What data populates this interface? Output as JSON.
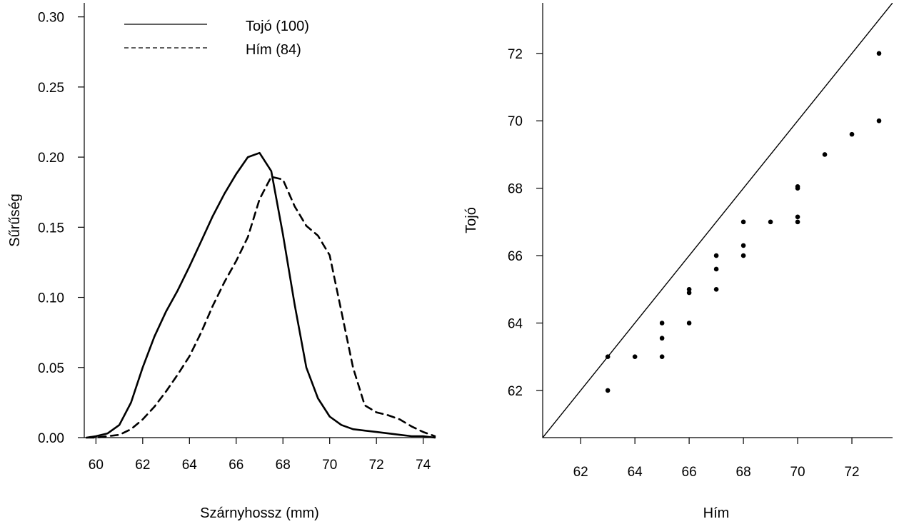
{
  "chart_data": [
    {
      "type": "line",
      "title": "",
      "xlabel": "Szárnyhossz (mm)",
      "ylabel": "Sűrűség",
      "xlim": [
        59.5,
        74.5
      ],
      "ylim": [
        0,
        0.31
      ],
      "xticks": [
        60,
        62,
        64,
        66,
        68,
        70,
        72,
        74
      ],
      "xtick_labels": [
        "60",
        "62",
        "64",
        "66",
        "68",
        "70",
        "72",
        "74"
      ],
      "yticks": [
        0,
        0.05,
        0.1,
        0.15,
        0.2,
        0.25,
        0.3
      ],
      "ytick_labels": [
        "0.00",
        "0.05",
        "0.10",
        "0.15",
        "0.20",
        "0.25",
        "0.30"
      ],
      "legend": {
        "placement": "top-left"
      },
      "series": [
        {
          "name": "Tojó (100)",
          "style": "solid",
          "x": [
            59.6,
            60.0,
            60.5,
            61.0,
            61.5,
            62.0,
            62.5,
            63.0,
            63.5,
            64.0,
            64.5,
            65.0,
            65.5,
            66.0,
            66.5,
            67.0,
            67.5,
            68.0,
            68.5,
            69.0,
            69.5,
            70.0,
            70.5,
            71.0,
            71.5,
            72.0,
            72.5,
            73.0,
            73.5,
            74.0,
            74.5
          ],
          "y": [
            0.0,
            0.001,
            0.003,
            0.009,
            0.025,
            0.05,
            0.072,
            0.09,
            0.105,
            0.122,
            0.14,
            0.158,
            0.174,
            0.188,
            0.2,
            0.203,
            0.19,
            0.145,
            0.095,
            0.05,
            0.028,
            0.015,
            0.009,
            0.006,
            0.005,
            0.004,
            0.003,
            0.002,
            0.001,
            0.001,
            0.0
          ]
        },
        {
          "name": "Hím (84)",
          "style": "dashed",
          "x": [
            59.6,
            60.0,
            60.5,
            61.0,
            61.5,
            62.0,
            62.5,
            63.0,
            63.5,
            64.0,
            64.5,
            65.0,
            65.5,
            66.0,
            66.5,
            67.0,
            67.5,
            68.0,
            68.5,
            69.0,
            69.5,
            70.0,
            70.5,
            71.0,
            71.5,
            72.0,
            72.5,
            73.0,
            73.5,
            74.0,
            74.5
          ],
          "y": [
            0.0,
            0.0,
            0.001,
            0.002,
            0.006,
            0.013,
            0.022,
            0.033,
            0.045,
            0.058,
            0.075,
            0.094,
            0.111,
            0.126,
            0.143,
            0.17,
            0.186,
            0.184,
            0.165,
            0.151,
            0.144,
            0.13,
            0.09,
            0.05,
            0.023,
            0.018,
            0.016,
            0.013,
            0.008,
            0.004,
            0.001
          ]
        }
      ],
      "baseline": 0,
      "grid": false
    },
    {
      "type": "scatter",
      "title": "",
      "xlabel": "Hím",
      "ylabel": "Tojó",
      "xlim": [
        60.6,
        73.5
      ],
      "ylim": [
        60.6,
        73.5
      ],
      "xticks": [
        62,
        64,
        66,
        68,
        70,
        72
      ],
      "xtick_labels": [
        "62",
        "64",
        "66",
        "68",
        "70",
        "72"
      ],
      "yticks": [
        62,
        64,
        66,
        68,
        70,
        72
      ],
      "ytick_labels": [
        "62",
        "64",
        "66",
        "68",
        "70",
        "72"
      ],
      "reference_line": "y = x",
      "grid": false,
      "points": [
        {
          "x": 63,
          "y": 62
        },
        {
          "x": 63,
          "y": 63
        },
        {
          "x": 64,
          "y": 63
        },
        {
          "x": 65,
          "y": 63
        },
        {
          "x": 65,
          "y": 63.55
        },
        {
          "x": 65,
          "y": 64
        },
        {
          "x": 66,
          "y": 64
        },
        {
          "x": 66,
          "y": 64.9
        },
        {
          "x": 66,
          "y": 65
        },
        {
          "x": 67,
          "y": 65
        },
        {
          "x": 67,
          "y": 65.6
        },
        {
          "x": 67,
          "y": 66
        },
        {
          "x": 68,
          "y": 66
        },
        {
          "x": 68,
          "y": 66.3
        },
        {
          "x": 68,
          "y": 67
        },
        {
          "x": 69,
          "y": 67
        },
        {
          "x": 70,
          "y": 67
        },
        {
          "x": 70,
          "y": 67.15
        },
        {
          "x": 70,
          "y": 68
        },
        {
          "x": 70,
          "y": 68.05
        },
        {
          "x": 71,
          "y": 69
        },
        {
          "x": 72,
          "y": 69.6
        },
        {
          "x": 73,
          "y": 70
        },
        {
          "x": 73,
          "y": 72
        }
      ]
    }
  ]
}
